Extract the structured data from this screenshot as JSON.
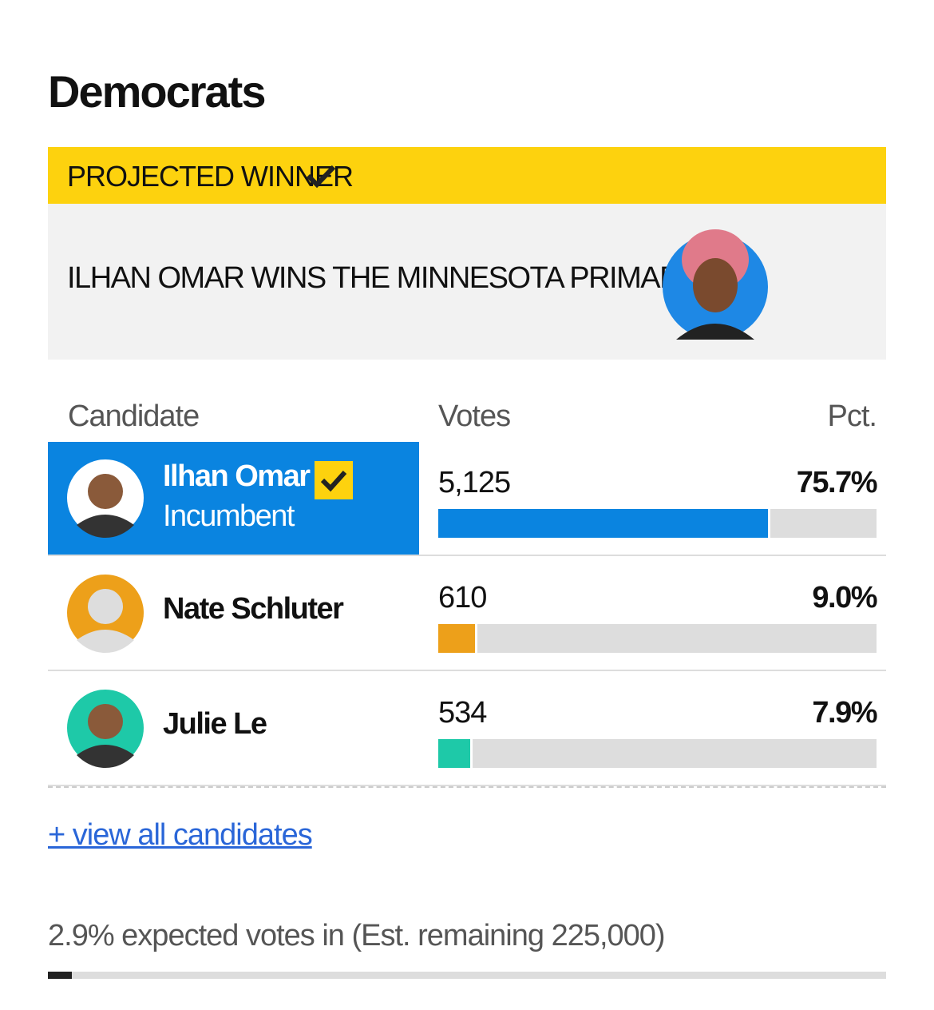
{
  "header": {
    "title": "Democrats"
  },
  "banner": {
    "label": "PROJECTED WINNER",
    "headline": "ILHAN OMAR WINS THE MINNESOTA PRIMARY"
  },
  "table": {
    "columns": [
      "Candidate",
      "Votes",
      "Pct."
    ],
    "rows": [
      {
        "name": "Ilhan Omar",
        "note": "Incumbent",
        "votes": "5,125",
        "pct": {
          "value": 75.7,
          "label": "75.7%"
        },
        "color": "#0a84e0",
        "winner": true
      },
      {
        "name": "Nate Schluter",
        "votes": "610",
        "pct": {
          "value": 9.0,
          "label": "9.0%"
        },
        "color": "#eda01a",
        "winner": false
      },
      {
        "name": "Julie Le",
        "votes": "534",
        "pct": {
          "value": 7.9,
          "label": "7.9%"
        },
        "color": "#1ec9a8",
        "winner": false
      }
    ]
  },
  "link": "+ view all candidates",
  "reporting": {
    "text": "2.9% expected votes in (Est. remaining 225,000)",
    "value": 2.9
  }
}
